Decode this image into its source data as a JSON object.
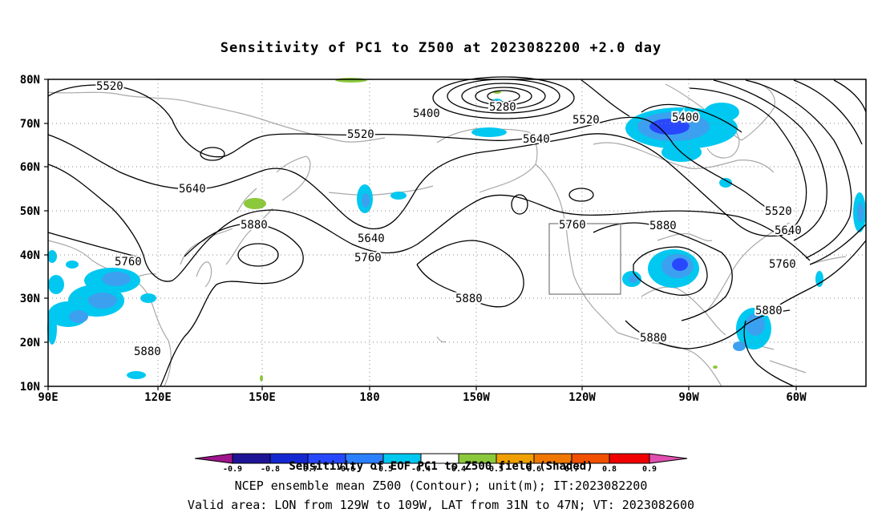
{
  "title": "Sensitivity of PC1 to Z500 at 2023082200 +2.0 day",
  "map": {
    "lat_labels": [
      "80N",
      "70N",
      "60N",
      "50N",
      "40N",
      "30N",
      "20N",
      "10N"
    ],
    "lon_labels": [
      "90E",
      "120E",
      "150E",
      "180",
      "150W",
      "120W",
      "90W",
      "60W"
    ],
    "contour_labels": [
      {
        "text": "5520"
      },
      {
        "text": "5400"
      },
      {
        "text": "5280"
      },
      {
        "text": "5520"
      },
      {
        "text": "5520"
      },
      {
        "text": "5400"
      },
      {
        "text": "5640"
      },
      {
        "text": "5640"
      },
      {
        "text": "5880"
      },
      {
        "text": "5640"
      },
      {
        "text": "5760"
      },
      {
        "text": "5760"
      },
      {
        "text": "5880"
      },
      {
        "text": "5760"
      },
      {
        "text": "5880"
      },
      {
        "text": "5520"
      },
      {
        "text": "5640"
      },
      {
        "text": "5760"
      },
      {
        "text": "5880"
      },
      {
        "text": "5880"
      },
      {
        "text": "5880"
      }
    ],
    "valid_box": {
      "lon_from": "129W",
      "lon_to": "109W",
      "lat_from": "31N",
      "lat_to": "47N"
    }
  },
  "colorbar": {
    "title": "Sensitivity of EOF PC1 to Z500 field (Shaded)",
    "labels": [
      "-0.9",
      "-0.8",
      "-0.7",
      "-0.6",
      "-0.5",
      "-0.4",
      "0.4",
      "0.5",
      "0.6",
      "0.7",
      "0.8",
      "0.9"
    ],
    "colors": [
      "#a0148c",
      "#1e1496",
      "#1428d2",
      "#2848ff",
      "#2c80ff",
      "#3ca0f0",
      "#00c8f0",
      "#ffffff",
      "#8cc83c",
      "#f0a000",
      "#f07800",
      "#f05000",
      "#f00000",
      "#e050b0"
    ]
  },
  "footer": {
    "line1": "NCEP ensemble mean Z500 (Contour); unit(m); IT:2023082200",
    "line2": "Valid area: LON from 129W to 109W, LAT from 31N to 47N; VT: 2023082600"
  }
}
